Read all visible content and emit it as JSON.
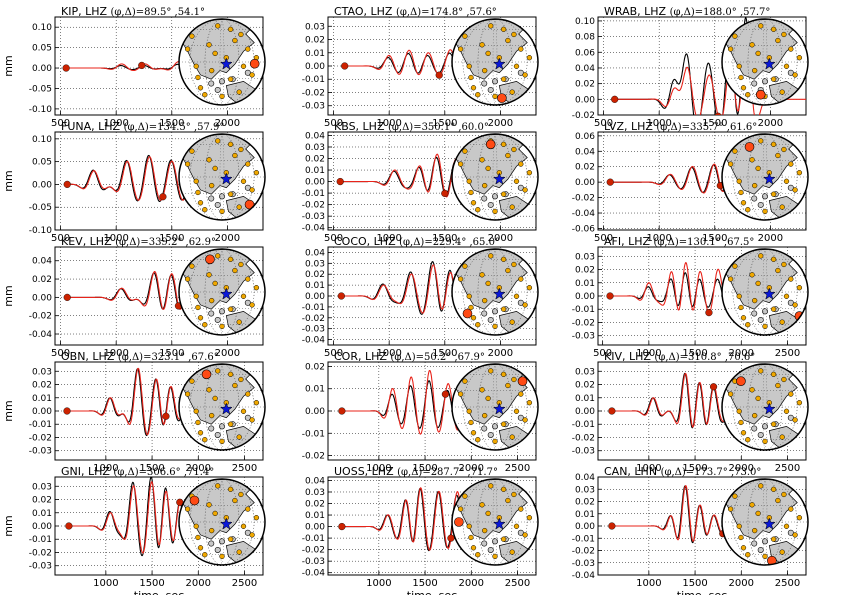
{
  "figure": {
    "ylabel": "mm",
    "xlabel": "time, sec",
    "colors": {
      "black": "#000000",
      "red": "#e8231a",
      "marker": "#cc2200",
      "land": "#c8c8c8",
      "station": "#f0a800",
      "event": "#0a18d8",
      "highlight": "#ff4a14"
    }
  },
  "chart_data": [
    {
      "type": "line",
      "title": "KIP, LHZ ($\\phi$,$\\Delta$)=89.5°,54.1°",
      "station": "KIP",
      "comp": "LHZ",
      "az": "89.5",
      "dist": "54.1",
      "xticks": [
        500,
        1000,
        1500,
        2000
      ],
      "xlim": [
        450,
        2320
      ],
      "yticks": [
        "-0.10",
        "-0.05",
        "0.00",
        "0.05",
        "0.10"
      ],
      "ytick_values": [
        -0.1,
        -0.05,
        0,
        0.05,
        0.1
      ],
      "ylim": [
        -0.115,
        0.125
      ],
      "markers": [
        550,
        1230
      ],
      "black_end": 1800,
      "peaks": [
        1050,
        1260,
        1560,
        1760,
        1950
      ],
      "amps": [
        0.01,
        0.01,
        0.015,
        0.05,
        0.11
      ],
      "ratio": 0.6,
      "station_pos": [
        0.88,
        0.52
      ],
      "xlabel": "",
      "ylabel": "mm",
      "series": [
        {
          "name": "observed",
          "color": "black"
        },
        {
          "name": "synthetic",
          "color": "red"
        }
      ]
    },
    {
      "type": "line",
      "title": "CTAO, LHZ ($\\phi$,$\\Delta$)=174.8°,57.6°",
      "station": "CTAO",
      "comp": "LHZ",
      "az": "174.8",
      "dist": "57.6",
      "xticks": [
        500,
        1000,
        1500,
        2000
      ],
      "xlim": [
        450,
        2320
      ],
      "yticks": [
        "-0.03",
        "-0.02",
        "-0.01",
        "0.00",
        "0.01",
        "0.02",
        "0.03"
      ],
      "ytick_values": [
        -0.03,
        -0.02,
        -0.01,
        0,
        0.01,
        0.02,
        0.03
      ],
      "ylim": [
        -0.037,
        0.037
      ],
      "markers": [
        600,
        1450
      ],
      "black_end": 1780,
      "peaks": [
        1000,
        1180,
        1350,
        1550,
        1750
      ],
      "amps": [
        0.008,
        0.012,
        0.01,
        0.012,
        0.022
      ],
      "ratio": 0.8,
      "station_pos": [
        0.58,
        0.92
      ],
      "xlabel": "",
      "ylabel": "",
      "series": [
        {
          "name": "observed",
          "color": "black"
        },
        {
          "name": "synthetic",
          "color": "red"
        }
      ]
    },
    {
      "type": "line",
      "title": "WRAB, LHZ ($\\phi$,$\\Delta$)=188.0°,57.7°",
      "station": "WRAB",
      "comp": "LHZ",
      "az": "188.0",
      "dist": "57.7",
      "xticks": [
        500,
        1000,
        1500,
        2000
      ],
      "xlim": [
        450,
        2320
      ],
      "yticks": [
        "-0.02",
        "0.00",
        "0.02",
        "0.04",
        "0.06",
        "0.08",
        "0.10"
      ],
      "ytick_values": [
        -0.02,
        0,
        0.02,
        0.04,
        0.06,
        0.08,
        0.1
      ],
      "ylim": [
        -0.02,
        0.105
      ],
      "markers": [
        600,
        1530
      ],
      "black_end": 1800,
      "peaks": [
        1150,
        1250,
        1450,
        1650,
        1780
      ],
      "amps": [
        0.03,
        0.05,
        0.03,
        0.06,
        0.09
      ],
      "ratio": 1.5,
      "station_pos": [
        0.45,
        0.88
      ],
      "xlabel": "",
      "ylabel": "",
      "series": [
        {
          "name": "observed",
          "color": "black"
        },
        {
          "name": "synthetic",
          "color": "red"
        }
      ]
    },
    {
      "type": "line",
      "title": "FUNA, LHZ ($\\phi$,$\\Delta$)=134.5°,57.9°",
      "station": "FUNA",
      "comp": "LHZ",
      "az": "134.5",
      "dist": "57.9",
      "xticks": [
        500,
        1000,
        1500,
        2000
      ],
      "xlim": [
        450,
        2320
      ],
      "yticks": [
        "-0.10",
        "-0.05",
        "0.00",
        "0.05",
        "0.10"
      ],
      "ytick_values": [
        -0.1,
        -0.05,
        0,
        0.05,
        0.1
      ],
      "ylim": [
        -0.1,
        0.115
      ],
      "markers": [
        560,
        1420
      ],
      "black_end": 1760,
      "peaks": [
        800,
        1100,
        1300,
        1500,
        1700
      ],
      "amps": [
        0.03,
        0.05,
        0.06,
        0.05,
        0.06
      ],
      "ratio": 1.05,
      "station_pos": [
        0.82,
        0.82
      ],
      "xlabel": "",
      "ylabel": "mm",
      "series": [
        {
          "name": "observed",
          "color": "black"
        },
        {
          "name": "synthetic",
          "color": "red"
        }
      ]
    },
    {
      "type": "line",
      "title": "KBS, LHZ ($\\phi$,$\\Delta$)=350.1°,60.0°",
      "station": "KBS",
      "comp": "LHZ",
      "az": "350.1",
      "dist": "60.0",
      "xticks": [
        500,
        1000,
        1500,
        2000
      ],
      "xlim": [
        450,
        2320
      ],
      "yticks": [
        "-0.04",
        "-0.03",
        "-0.02",
        "-0.01",
        "0.00",
        "0.01",
        "0.02",
        "0.03",
        "0.04"
      ],
      "ytick_values": [
        -0.04,
        -0.03,
        -0.02,
        -0.01,
        0,
        0.01,
        0.02,
        0.03,
        0.04
      ],
      "ylim": [
        -0.042,
        0.043
      ],
      "markers": [
        560,
        1500
      ],
      "black_end": 1800,
      "peaks": [
        1050,
        1280,
        1430,
        1600,
        1850
      ],
      "amps": [
        0.01,
        0.015,
        0.025,
        0.02,
        0.035
      ],
      "ratio": 0.9,
      "station_pos": [
        0.45,
        0.12
      ],
      "xlabel": "",
      "ylabel": "",
      "series": [
        {
          "name": "observed",
          "color": "black"
        },
        {
          "name": "synthetic",
          "color": "red"
        }
      ]
    },
    {
      "type": "line",
      "title": "LVZ, LHZ ($\\phi$,$\\Delta$)=335.7°,61.6°",
      "station": "LVZ",
      "comp": "LHZ",
      "az": "335.7",
      "dist": "61.6",
      "xticks": [
        500,
        1000,
        1500,
        2000
      ],
      "xlim": [
        450,
        2320
      ],
      "yticks": [
        "-0.06",
        "-0.04",
        "-0.02",
        "0.00",
        "0.02",
        "0.04",
        "0.06"
      ],
      "ytick_values": [
        -0.06,
        -0.04,
        -0.02,
        0,
        0.02,
        0.04,
        0.06
      ],
      "ylim": [
        -0.062,
        0.065
      ],
      "markers": [
        560,
        1550
      ],
      "black_end": 1850,
      "peaks": [
        1100,
        1300,
        1500,
        1650,
        1900
      ],
      "amps": [
        0.01,
        0.02,
        0.025,
        0.03,
        0.05
      ],
      "ratio": 0.95,
      "station_pos": [
        0.32,
        0.15
      ],
      "xlabel": "",
      "ylabel": "",
      "series": [
        {
          "name": "observed",
          "color": "black"
        },
        {
          "name": "synthetic",
          "color": "red"
        }
      ]
    },
    {
      "type": "line",
      "title": "KEV, LHZ ($\\phi$,$\\Delta$)=339.2°,62.9°",
      "station": "KEV",
      "comp": "LHZ",
      "az": "339.2",
      "dist": "62.9",
      "xticks": [
        500,
        1000,
        1500,
        2000
      ],
      "xlim": [
        450,
        2320
      ],
      "yticks": [
        "-0.04",
        "-0.02",
        "0.00",
        "0.02",
        "0.04"
      ],
      "ytick_values": [
        -0.04,
        -0.02,
        0,
        0.02,
        0.04
      ],
      "ylim": [
        -0.052,
        0.055
      ],
      "markers": [
        560,
        1560
      ],
      "black_end": 1850,
      "peaks": [
        1050,
        1350,
        1500,
        1650,
        1930
      ],
      "amps": [
        0.01,
        0.03,
        0.03,
        0.03,
        0.05
      ],
      "ratio": 0.95,
      "station_pos": [
        0.36,
        0.12
      ],
      "xlabel": "",
      "ylabel": "mm",
      "series": [
        {
          "name": "observed",
          "color": "black"
        },
        {
          "name": "synthetic",
          "color": "red"
        }
      ]
    },
    {
      "type": "line",
      "title": "COCO, LHZ ($\\phi$,$\\Delta$)=229.4°,65.0°",
      "station": "COCO",
      "comp": "LHZ",
      "az": "229.4",
      "dist": "65.0",
      "xticks": [
        500,
        1000,
        1500,
        2000
      ],
      "xlim": [
        450,
        2320
      ],
      "yticks": [
        "-0.04",
        "-0.03",
        "-0.02",
        "-0.01",
        "0.00",
        "0.01",
        "0.02",
        "0.03",
        "0.04"
      ],
      "ytick_values": [
        -0.04,
        -0.03,
        -0.02,
        -0.01,
        0,
        0.01,
        0.02,
        0.03,
        0.04
      ],
      "ylim": [
        -0.045,
        0.045
      ],
      "markers": [
        570,
        1600
      ],
      "black_end": 1800,
      "peaks": [
        950,
        1200,
        1400,
        1550,
        1700
      ],
      "amps": [
        0.01,
        0.02,
        0.03,
        0.025,
        0.02
      ],
      "ratio": 1.1,
      "station_pos": [
        0.18,
        0.75
      ],
      "xlabel": "",
      "ylabel": "",
      "series": [
        {
          "name": "observed",
          "color": "black"
        },
        {
          "name": "synthetic",
          "color": "red"
        }
      ]
    },
    {
      "type": "line",
      "title": "AFI, LHZ ($\\phi$,$\\Delta$)=130.1°,67.5°",
      "station": "AFI",
      "comp": "LHZ",
      "az": "130.1",
      "dist": "67.5",
      "xticks": [
        500,
        1000,
        1500,
        2000,
        2500
      ],
      "xlim": [
        450,
        2700
      ],
      "yticks": [
        "-0.03",
        "-0.02",
        "-0.01",
        "0.00",
        "0.01",
        "0.02",
        "0.03"
      ],
      "ytick_values": [
        -0.03,
        -0.02,
        -0.01,
        0,
        0.01,
        0.02,
        0.03
      ],
      "ylim": [
        -0.037,
        0.037
      ],
      "markers": [
        580,
        1650
      ],
      "black_end": 1850,
      "peaks": [
        1000,
        1250,
        1400,
        1550,
        1750
      ],
      "amps": [
        0.01,
        0.02,
        0.028,
        0.02,
        0.02
      ],
      "ratio": 0.7,
      "station_pos": [
        0.9,
        0.78
      ],
      "xlabel": "",
      "ylabel": "",
      "series": [
        {
          "name": "observed",
          "color": "black"
        },
        {
          "name": "synthetic",
          "color": "red"
        }
      ]
    },
    {
      "type": "line",
      "title": "OBN, LHZ ($\\phi$,$\\Delta$)=323.1°,67.6°",
      "station": "OBN",
      "comp": "LHZ",
      "az": "323.1",
      "dist": "67.6",
      "xticks": [
        1000,
        1500,
        2000,
        2500
      ],
      "xlim": [
        450,
        2700
      ],
      "yticks": [
        "-0.03",
        "-0.02",
        "-0.01",
        "0.00",
        "0.01",
        "0.02",
        "0.03"
      ],
      "ytick_values": [
        -0.03,
        -0.02,
        -0.01,
        0,
        0.01,
        0.02,
        0.03
      ],
      "ylim": [
        -0.037,
        0.037
      ],
      "markers": [
        580,
        1650
      ],
      "black_end": 2000,
      "peaks": [
        1050,
        1350,
        1550,
        1700,
        2000
      ],
      "amps": [
        0.01,
        0.032,
        0.025,
        0.02,
        0.03
      ],
      "ratio": 1.0,
      "station_pos": [
        0.32,
        0.12
      ],
      "xlabel": "",
      "ylabel": "mm",
      "series": [
        {
          "name": "observed",
          "color": "black"
        },
        {
          "name": "synthetic",
          "color": "red"
        }
      ]
    },
    {
      "type": "line",
      "title": "COR, LHZ ($\\phi$,$\\Delta$)=50.2°,67.9°",
      "station": "COR",
      "comp": "LHZ",
      "az": "50.2",
      "dist": "67.9",
      "xticks": [
        1000,
        1500,
        2000,
        2500
      ],
      "xlim": [
        450,
        2700
      ],
      "yticks": [
        "-0.02",
        "-0.01",
        "0.00",
        "0.01",
        "0.02"
      ],
      "ytick_values": [
        -0.02,
        -0.01,
        0,
        0.01,
        0.02
      ],
      "ylim": [
        -0.022,
        0.022
      ],
      "markers": [
        600,
        1720
      ],
      "black_end": 2000,
      "peaks": [
        1150,
        1350,
        1550,
        1750,
        1950
      ],
      "amps": [
        0.01,
        0.015,
        0.018,
        0.012,
        0.015
      ],
      "ratio": 0.75,
      "station_pos": [
        0.82,
        0.2
      ],
      "xlabel": "",
      "ylabel": "",
      "series": [
        {
          "name": "observed",
          "color": "black"
        },
        {
          "name": "synthetic",
          "color": "red"
        }
      ]
    },
    {
      "type": "line",
      "title": "KIV, LHZ ($\\phi$,$\\Delta$)=310.8°,70.6°",
      "station": "KIV",
      "comp": "LHZ",
      "az": "310.8",
      "dist": "70.6",
      "xticks": [
        1000,
        1500,
        2000,
        2500
      ],
      "xlim": [
        450,
        2700
      ],
      "yticks": [
        "-0.03",
        "-0.02",
        "-0.01",
        "0.00",
        "0.01",
        "0.02",
        "0.03"
      ],
      "ytick_values": [
        -0.03,
        -0.02,
        -0.01,
        0,
        0.01,
        0.02,
        0.03
      ],
      "ylim": [
        -0.037,
        0.037
      ],
      "markers": [
        600,
        1700
      ],
      "black_end": 2000,
      "peaks": [
        1050,
        1400,
        1550,
        1700,
        1950
      ],
      "amps": [
        0.01,
        0.03,
        0.025,
        0.02,
        0.02
      ],
      "ratio": 1.0,
      "station_pos": [
        0.22,
        0.2
      ],
      "xlabel": "",
      "ylabel": "",
      "series": [
        {
          "name": "observed",
          "color": "black"
        },
        {
          "name": "synthetic",
          "color": "red"
        }
      ]
    },
    {
      "type": "line",
      "title": "GNI, LHZ ($\\phi$,$\\Delta$)=306.6°,71.4°",
      "station": "GNI",
      "comp": "LHZ",
      "az": "306.6",
      "dist": "71.4",
      "xticks": [
        1000,
        1500,
        2000,
        2500
      ],
      "xlim": [
        450,
        2700
      ],
      "yticks": [
        "-0.03",
        "-0.02",
        "-0.01",
        "0.00",
        "0.01",
        "0.02",
        "0.03"
      ],
      "ytick_values": [
        -0.03,
        -0.02,
        -0.01,
        0,
        0.01,
        0.02,
        0.03
      ],
      "ylim": [
        -0.037,
        0.037
      ],
      "markers": [
        600,
        1800
      ],
      "black_end": 2000,
      "peaks": [
        1050,
        1300,
        1500,
        1650,
        1800
      ],
      "amps": [
        0.01,
        0.03,
        0.035,
        0.03,
        0.02
      ],
      "ratio": 1.1,
      "station_pos": [
        0.18,
        0.25
      ],
      "xlabel": "time, sec",
      "ylabel": "mm",
      "series": [
        {
          "name": "observed",
          "color": "black"
        },
        {
          "name": "synthetic",
          "color": "red"
        }
      ]
    },
    {
      "type": "line",
      "title": "UOSS, LHZ ($\\phi$,$\\Delta$)=287.7°,71.7°",
      "station": "UOSS",
      "comp": "LHZ",
      "az": "287.7",
      "dist": "71.7",
      "xticks": [
        1000,
        1500,
        2000,
        2500
      ],
      "xlim": [
        450,
        2700
      ],
      "yticks": [
        "-0.04",
        "-0.03",
        "-0.02",
        "-0.01",
        "0.00",
        "0.01",
        "0.02",
        "0.03",
        "0.04"
      ],
      "ytick_values": [
        -0.04,
        -0.03,
        -0.02,
        -0.01,
        0,
        0.01,
        0.02,
        0.03,
        0.04
      ],
      "ylim": [
        -0.042,
        0.043
      ],
      "markers": [
        600,
        1780
      ],
      "black_end": 2000,
      "peaks": [
        1100,
        1300,
        1450,
        1650,
        1850
      ],
      "amps": [
        0.01,
        0.025,
        0.035,
        0.03,
        0.03
      ],
      "ratio": 1.0,
      "station_pos": [
        0.08,
        0.5
      ],
      "xlabel": "time, sec",
      "ylabel": "",
      "series": [
        {
          "name": "observed",
          "color": "black"
        },
        {
          "name": "synthetic",
          "color": "red"
        }
      ]
    },
    {
      "type": "line",
      "title": "CAN, LHN ($\\phi$,$\\Delta$)=173.7°,73.0°",
      "station": "CAN",
      "comp": "LHN",
      "az": "173.7",
      "dist": "73.0",
      "xticks": [
        1000,
        1500,
        2000,
        2500
      ],
      "xlim": [
        450,
        2700
      ],
      "yticks": [
        "-0.04",
        "-0.03",
        "-0.02",
        "-0.01",
        "0.00",
        "0.01",
        "0.02",
        "0.03",
        "0.04"
      ],
      "ytick_values": [
        -0.04,
        -0.03,
        -0.02,
        -0.01,
        0,
        0.01,
        0.02,
        0.03,
        0.04
      ],
      "ylim": [
        -0.04,
        0.04
      ],
      "markers": [
        600,
        1800
      ],
      "black_end": 2000,
      "peaks": [
        1250,
        1400,
        1550,
        1700,
        1900
      ],
      "amps": [
        0.01,
        0.035,
        0.02,
        0.01,
        0.01
      ],
      "ratio": 1.0,
      "station_pos": [
        0.58,
        0.95
      ],
      "xlabel": "time, sec",
      "ylabel": "",
      "series": [
        {
          "name": "observed",
          "color": "black"
        },
        {
          "name": "synthetic",
          "color": "red"
        }
      ]
    }
  ]
}
